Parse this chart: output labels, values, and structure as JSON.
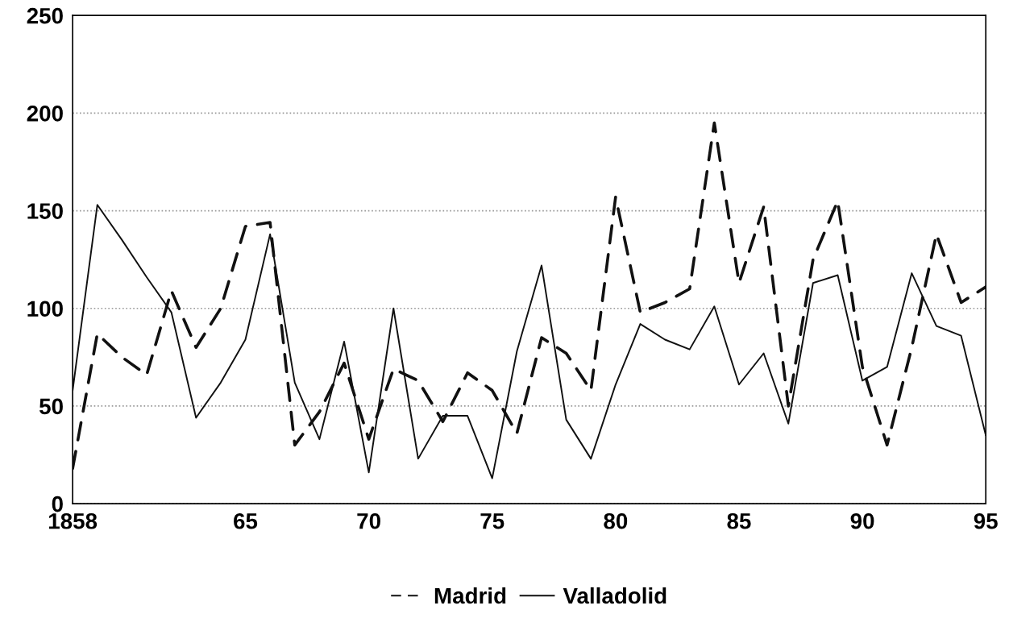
{
  "chart_data": {
    "type": "line",
    "x": [
      1858,
      1859,
      1860,
      1861,
      1862,
      1863,
      1864,
      1865,
      1866,
      1867,
      1868,
      1869,
      1870,
      1871,
      1872,
      1873,
      1874,
      1875,
      1876,
      1877,
      1878,
      1879,
      1880,
      1881,
      1882,
      1883,
      1884,
      1885,
      1886,
      1887,
      1888,
      1889,
      1890,
      1891,
      1892,
      1893,
      1894,
      1895
    ],
    "series": [
      {
        "name": "Madrid",
        "color": "#111111",
        "line_style": "dashed",
        "values": [
          18,
          87,
          75,
          66,
          109,
          80,
          100,
          142,
          144,
          30,
          47,
          72,
          33,
          69,
          63,
          42,
          67,
          58,
          36,
          85,
          77,
          58,
          157,
          98,
          103,
          110,
          195,
          113,
          152,
          50,
          125,
          155,
          70,
          30,
          80,
          138,
          103,
          111
        ]
      },
      {
        "name": "Valladolid",
        "color": "#111111",
        "line_style": "solid",
        "values": [
          58,
          153,
          135,
          116,
          98,
          44,
          62,
          84,
          138,
          62,
          33,
          83,
          16,
          100,
          23,
          45,
          45,
          13,
          78,
          122,
          43,
          23,
          61,
          92,
          84,
          79,
          101,
          61,
          77,
          41,
          113,
          117,
          63,
          70,
          118,
          91,
          86,
          35
        ]
      }
    ],
    "xlim": [
      1858,
      1895
    ],
    "xticks": [
      1858,
      {
        "value": 1865,
        "label": "65"
      },
      {
        "value": 1870,
        "label": "70"
      },
      {
        "value": 1875,
        "label": "75"
      },
      {
        "value": 1880,
        "label": "80"
      },
      {
        "value": 1885,
        "label": "85"
      },
      {
        "value": 1890,
        "label": "90"
      },
      {
        "value": 1895,
        "label": "95"
      }
    ],
    "ylim": [
      0,
      250
    ],
    "yticks": [
      0,
      50,
      100,
      150,
      200,
      250
    ],
    "grid": "y",
    "legend": "bottom",
    "marker": "none"
  }
}
